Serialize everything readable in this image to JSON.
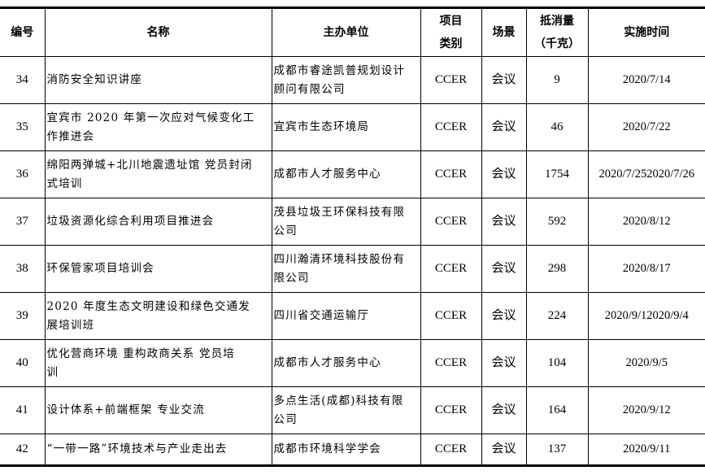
{
  "headers": {
    "id": "编号",
    "name": "名称",
    "organizer": "主办单位",
    "type": "项目\n类别",
    "scene": "场景",
    "offset": "抵消量\n（千克）",
    "date": "实施时间"
  },
  "rows": [
    {
      "id": "34",
      "name": "消防安全知识讲座",
      "organizer": "成都市睿途凯普规划设计\n顾问有限公司",
      "type": "CCER",
      "scene": "会议",
      "offset": "9",
      "date": "2020/7/14"
    },
    {
      "id": "35",
      "name": "宜宾市 2020 年第一次应对气候变化工\n作推进会",
      "organizer": "宜宾市生态环境局",
      "type": "CCER",
      "scene": "会议",
      "offset": "46",
      "date": "2020/7/22"
    },
    {
      "id": "36",
      "name": "绵阳两弹城+北川地震遗址馆  党员封闭\n式培训",
      "organizer": "成都市人才服务中心",
      "type": "CCER",
      "scene": "会议",
      "offset": "1754",
      "date": "2020/7/252020/7/26"
    },
    {
      "id": "37",
      "name": "垃圾资源化综合利用项目推进会",
      "organizer": "茂县垃圾王环保科技有限\n公司",
      "type": "CCER",
      "scene": "会议",
      "offset": "592",
      "date": "2020/8/12"
    },
    {
      "id": "38",
      "name": "环保管家项目培训会",
      "organizer": "四川瀚清环境科技股份有\n限公司",
      "type": "CCER",
      "scene": "会议",
      "offset": "298",
      "date": "2020/8/17"
    },
    {
      "id": "39",
      "name": "2020 年度生态文明建设和绿色交通发\n展培训班",
      "organizer": "四川省交通运输厅",
      "type": "CCER",
      "scene": "会议",
      "offset": "224",
      "date": "2020/9/12020/9/4"
    },
    {
      "id": "40",
      "name": "优化营商环境  重构政商关系    党员培\n训",
      "organizer": "成都市人才服务中心",
      "type": "CCER",
      "scene": "会议",
      "offset": "104",
      "date": "2020/9/5"
    },
    {
      "id": "41",
      "name": "设计体系+前端框架  专业交流",
      "organizer": "多点生活(成都)科技有限\n公司",
      "type": "CCER",
      "scene": "会议",
      "offset": "164",
      "date": "2020/9/12"
    },
    {
      "id": "42",
      "name": "“一带一路”环境技术与产业走出去",
      "organizer": "成都市环境科学学会",
      "type": "CCER",
      "scene": "会议",
      "offset": "137",
      "date": "2020/9/11"
    }
  ]
}
